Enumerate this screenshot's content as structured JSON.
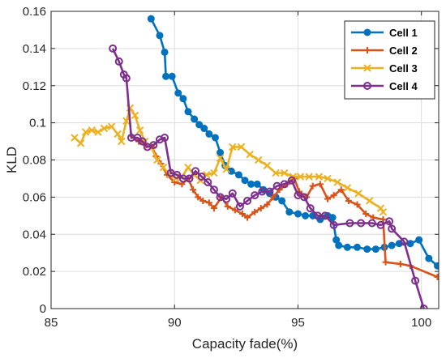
{
  "chart_data": {
    "type": "line",
    "xlabel": "Capacity fade(%)",
    "ylabel": "KLD",
    "xlim": [
      85,
      100.7
    ],
    "ylim": [
      0,
      0.16
    ],
    "xticks": [
      85,
      90,
      95,
      100
    ],
    "yticks": [
      0,
      0.02,
      0.04,
      0.06,
      0.08,
      0.1,
      0.12,
      0.14,
      0.16
    ],
    "xtick_labels": [
      "85",
      "90",
      "95",
      "100"
    ],
    "ytick_labels": [
      "0",
      "0.02",
      "0.04",
      "0.06",
      "0.08",
      "0.1",
      "0.12",
      "0.14",
      "0.16"
    ],
    "grid": true,
    "legend_position": "top-right",
    "series": [
      {
        "name": "Cell 1",
        "color": "#0072BD",
        "marker": "circle-filled",
        "points": [
          [
            89.05,
            0.156
          ],
          [
            89.4,
            0.147
          ],
          [
            89.6,
            0.138
          ],
          [
            89.65,
            0.125
          ],
          [
            89.9,
            0.125
          ],
          [
            90.15,
            0.116
          ],
          [
            90.35,
            0.113
          ],
          [
            90.55,
            0.106
          ],
          [
            90.8,
            0.102
          ],
          [
            91.0,
            0.099
          ],
          [
            91.2,
            0.097
          ],
          [
            91.4,
            0.094
          ],
          [
            91.65,
            0.092
          ],
          [
            91.85,
            0.084
          ],
          [
            92.05,
            0.077
          ],
          [
            92.3,
            0.074
          ],
          [
            92.6,
            0.072
          ],
          [
            92.85,
            0.069
          ],
          [
            93.1,
            0.067
          ],
          [
            93.35,
            0.067
          ],
          [
            93.6,
            0.064
          ],
          [
            93.85,
            0.062
          ],
          [
            94.1,
            0.06
          ],
          [
            94.35,
            0.058
          ],
          [
            94.65,
            0.052
          ],
          [
            95.0,
            0.051
          ],
          [
            95.3,
            0.05
          ],
          [
            95.6,
            0.05
          ],
          [
            95.9,
            0.048
          ],
          [
            96.2,
            0.05
          ],
          [
            96.4,
            0.049
          ],
          [
            96.55,
            0.037
          ],
          [
            96.65,
            0.034
          ],
          [
            97.0,
            0.033
          ],
          [
            97.4,
            0.033
          ],
          [
            97.8,
            0.032
          ],
          [
            98.15,
            0.032
          ],
          [
            98.5,
            0.033
          ],
          [
            98.8,
            0.034
          ],
          [
            99.1,
            0.035
          ],
          [
            99.55,
            0.035
          ],
          [
            99.9,
            0.037
          ],
          [
            100.3,
            0.027
          ],
          [
            100.65,
            0.023
          ]
        ]
      },
      {
        "name": "Cell 2",
        "color": "#D95319",
        "marker": "plus",
        "points": [
          [
            88.25,
            0.093
          ],
          [
            88.55,
            0.09
          ],
          [
            88.85,
            0.088
          ],
          [
            89.1,
            0.087
          ],
          [
            89.25,
            0.082
          ],
          [
            89.45,
            0.078
          ],
          [
            89.7,
            0.072
          ],
          [
            90.0,
            0.068
          ],
          [
            90.3,
            0.067
          ],
          [
            90.55,
            0.07
          ],
          [
            90.75,
            0.064
          ],
          [
            90.95,
            0.06
          ],
          [
            91.15,
            0.058
          ],
          [
            91.4,
            0.057
          ],
          [
            91.6,
            0.054
          ],
          [
            91.9,
            0.06
          ],
          [
            92.15,
            0.055
          ],
          [
            92.45,
            0.053
          ],
          [
            92.75,
            0.051
          ],
          [
            92.95,
            0.049
          ],
          [
            93.25,
            0.052
          ],
          [
            93.5,
            0.054
          ],
          [
            93.75,
            0.056
          ],
          [
            94.0,
            0.06
          ],
          [
            94.25,
            0.064
          ],
          [
            94.55,
            0.067
          ],
          [
            94.85,
            0.07
          ],
          [
            95.05,
            0.063
          ],
          [
            95.35,
            0.06
          ],
          [
            95.6,
            0.066
          ],
          [
            95.9,
            0.067
          ],
          [
            96.2,
            0.059
          ],
          [
            96.45,
            0.061
          ],
          [
            96.75,
            0.064
          ],
          [
            97.05,
            0.058
          ],
          [
            97.4,
            0.056
          ],
          [
            97.75,
            0.051
          ],
          [
            98.05,
            0.049
          ],
          [
            98.45,
            0.048
          ],
          [
            98.55,
            0.025
          ],
          [
            99.15,
            0.024
          ],
          [
            99.55,
            0.023
          ],
          [
            100.65,
            0.017
          ]
        ]
      },
      {
        "name": "Cell 3",
        "color": "#EDB120",
        "marker": "x",
        "points": [
          [
            85.95,
            0.092
          ],
          [
            86.2,
            0.089
          ],
          [
            86.4,
            0.095
          ],
          [
            86.65,
            0.096
          ],
          [
            86.9,
            0.095
          ],
          [
            87.15,
            0.097
          ],
          [
            87.45,
            0.098
          ],
          [
            87.7,
            0.094
          ],
          [
            87.85,
            0.09
          ],
          [
            88.05,
            0.101
          ],
          [
            88.2,
            0.108
          ],
          [
            88.4,
            0.104
          ],
          [
            88.6,
            0.096
          ],
          [
            88.8,
            0.09
          ],
          [
            89.05,
            0.087
          ],
          [
            89.3,
            0.08
          ],
          [
            89.55,
            0.076
          ],
          [
            89.8,
            0.072
          ],
          [
            90.05,
            0.07
          ],
          [
            90.3,
            0.071
          ],
          [
            90.55,
            0.076
          ],
          [
            90.8,
            0.072
          ],
          [
            91.05,
            0.069
          ],
          [
            91.3,
            0.072
          ],
          [
            91.6,
            0.073
          ],
          [
            91.85,
            0.081
          ],
          [
            92.1,
            0.075
          ],
          [
            92.35,
            0.087
          ],
          [
            92.7,
            0.087
          ],
          [
            93.05,
            0.083
          ],
          [
            93.4,
            0.08
          ],
          [
            93.75,
            0.077
          ],
          [
            94.1,
            0.073
          ],
          [
            94.45,
            0.073
          ],
          [
            94.8,
            0.071
          ],
          [
            95.1,
            0.071
          ],
          [
            95.45,
            0.071
          ],
          [
            95.85,
            0.071
          ],
          [
            96.2,
            0.07
          ],
          [
            96.6,
            0.068
          ],
          [
            97.0,
            0.065
          ],
          [
            97.45,
            0.062
          ],
          [
            97.9,
            0.058
          ],
          [
            98.35,
            0.054
          ],
          [
            98.45,
            0.052
          ]
        ]
      },
      {
        "name": "Cell 4",
        "color": "#7E2F8E",
        "marker": "circle-open",
        "points": [
          [
            87.5,
            0.14
          ],
          [
            87.75,
            0.133
          ],
          [
            87.95,
            0.126
          ],
          [
            88.05,
            0.124
          ],
          [
            88.25,
            0.092
          ],
          [
            88.5,
            0.092
          ],
          [
            88.7,
            0.09
          ],
          [
            88.9,
            0.087
          ],
          [
            89.15,
            0.088
          ],
          [
            89.4,
            0.091
          ],
          [
            89.6,
            0.092
          ],
          [
            89.85,
            0.073
          ],
          [
            90.1,
            0.072
          ],
          [
            90.35,
            0.07
          ],
          [
            90.6,
            0.07
          ],
          [
            90.85,
            0.074
          ],
          [
            91.1,
            0.071
          ],
          [
            91.35,
            0.068
          ],
          [
            91.6,
            0.064
          ],
          [
            91.85,
            0.06
          ],
          [
            92.1,
            0.059
          ],
          [
            92.35,
            0.062
          ],
          [
            92.65,
            0.055
          ],
          [
            92.95,
            0.058
          ],
          [
            93.25,
            0.061
          ],
          [
            93.55,
            0.063
          ],
          [
            93.85,
            0.063
          ],
          [
            94.15,
            0.066
          ],
          [
            94.45,
            0.067
          ],
          [
            94.75,
            0.069
          ],
          [
            95.0,
            0.061
          ],
          [
            95.25,
            0.06
          ],
          [
            95.5,
            0.054
          ],
          [
            95.8,
            0.05
          ],
          [
            96.1,
            0.05
          ],
          [
            96.45,
            0.045
          ],
          [
            97.1,
            0.046
          ],
          [
            97.55,
            0.046
          ],
          [
            98.0,
            0.046
          ],
          [
            98.35,
            0.045
          ],
          [
            98.7,
            0.047
          ],
          [
            98.8,
            0.043
          ],
          [
            99.3,
            0.036
          ],
          [
            99.75,
            0.015
          ],
          [
            100.1,
            0.0
          ]
        ]
      }
    ]
  }
}
